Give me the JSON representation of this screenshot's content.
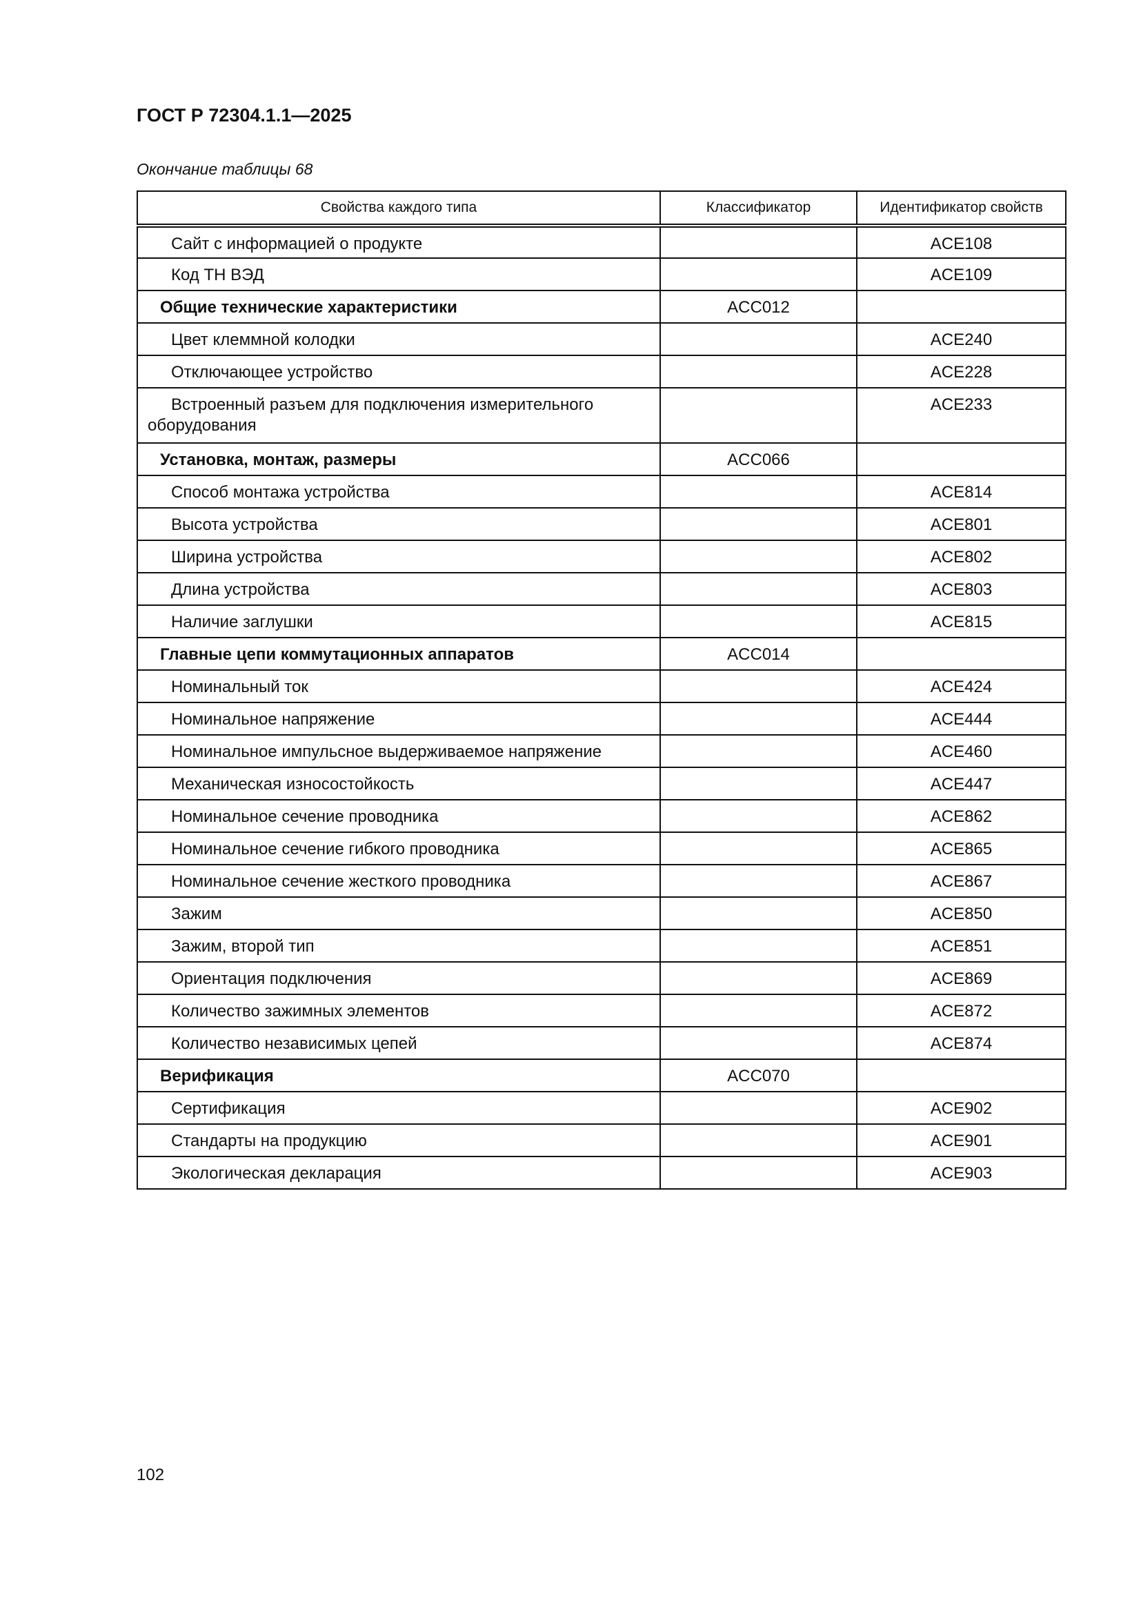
{
  "header": {
    "title": "ГОСТ Р 72304.1.1—2025",
    "caption": "Окончание таблицы 68"
  },
  "table": {
    "columns": [
      "Свойства каждого типа",
      "Классификатор",
      "Идентификатор свойств"
    ],
    "rows": [
      {
        "property": "Сайт с информацией о продукте",
        "classifier": "",
        "id": "ACE108"
      },
      {
        "property": "Код ТН ВЭД",
        "classifier": "",
        "id": "ACE109"
      },
      {
        "property": "Общие технические характеристики",
        "classifier": "ACC012",
        "id": "",
        "group": true
      },
      {
        "property": "Цвет клеммной колодки",
        "classifier": "",
        "id": "ACE240"
      },
      {
        "property": "Отключающее устройство",
        "classifier": "",
        "id": "ACE228"
      },
      {
        "property": "Встроенный разъем для подключения измерительного оборудования",
        "classifier": "",
        "id": "ACE233",
        "wrap": true
      },
      {
        "property": "Установка, монтаж, размеры",
        "classifier": "ACC066",
        "id": "",
        "group": true
      },
      {
        "property": "Способ монтажа устройства",
        "classifier": "",
        "id": "ACE814"
      },
      {
        "property": "Высота устройства",
        "classifier": "",
        "id": "ACE801"
      },
      {
        "property": "Ширина устройства",
        "classifier": "",
        "id": "ACE802"
      },
      {
        "property": "Длина устройства",
        "classifier": "",
        "id": "ACE803"
      },
      {
        "property": "Наличие заглушки",
        "classifier": "",
        "id": "ACE815"
      },
      {
        "property": "Главные цепи коммутационных аппаратов",
        "classifier": "ACC014",
        "id": "",
        "group": true
      },
      {
        "property": "Номинальный ток",
        "classifier": "",
        "id": "ACE424"
      },
      {
        "property": "Номинальное напряжение",
        "classifier": "",
        "id": "ACE444"
      },
      {
        "property": "Номинальное импульсное выдерживаемое напряжение",
        "classifier": "",
        "id": "ACE460"
      },
      {
        "property": "Механическая износостойкость",
        "classifier": "",
        "id": "ACE447"
      },
      {
        "property": "Номинальное сечение проводника",
        "classifier": "",
        "id": "ACE862"
      },
      {
        "property": "Номинальное сечение гибкого проводника",
        "classifier": "",
        "id": "ACE865"
      },
      {
        "property": "Номинальное сечение жесткого проводника",
        "classifier": "",
        "id": "ACE867"
      },
      {
        "property": "Зажим",
        "classifier": "",
        "id": "ACE850"
      },
      {
        "property": "Зажим, второй тип",
        "classifier": "",
        "id": "ACE851"
      },
      {
        "property": "Ориентация подключения",
        "classifier": "",
        "id": "ACE869"
      },
      {
        "property": "Количество зажимных элементов",
        "classifier": "",
        "id": "ACE872"
      },
      {
        "property": "Количество независимых цепей",
        "classifier": "",
        "id": "ACE874"
      },
      {
        "property": "Верификация",
        "classifier": "ACC070",
        "id": "",
        "group": true
      },
      {
        "property": "Сертификация",
        "classifier": "",
        "id": "ACE902"
      },
      {
        "property": "Стандарты на продукцию",
        "classifier": "",
        "id": "ACE901"
      },
      {
        "property": "Экологическая декларация",
        "classifier": "",
        "id": "ACE903"
      }
    ]
  },
  "footer": {
    "page_number": "102"
  }
}
